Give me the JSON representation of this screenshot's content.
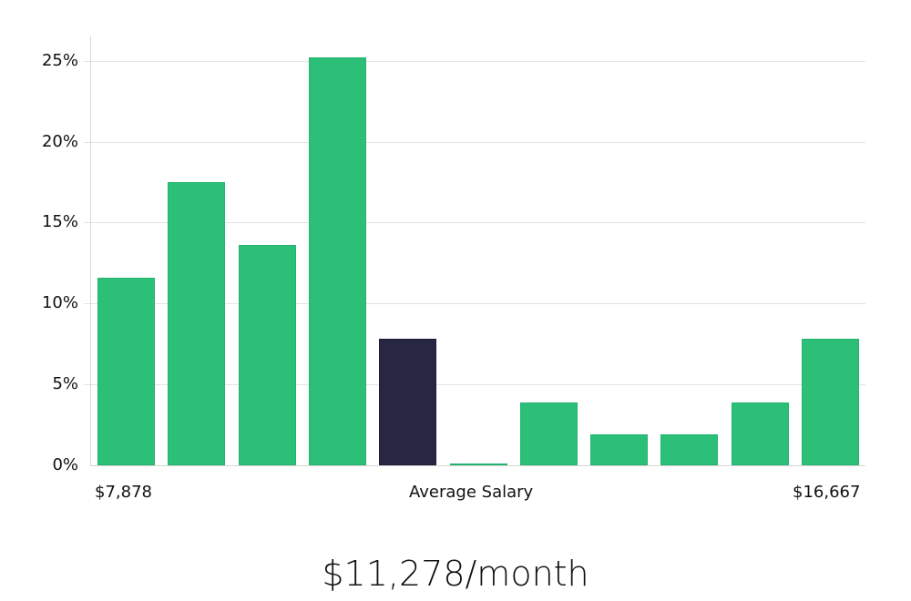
{
  "chart_data": {
    "type": "bar",
    "title": "",
    "xlabel": "Average Salary",
    "ylabel": "",
    "ylim": [
      0,
      26.5
    ],
    "yticks": [
      "0%",
      "5%",
      "10%",
      "15%",
      "20%",
      "25%"
    ],
    "x_range_labels": {
      "min": "$7,878",
      "center": "Average Salary",
      "max": "$16,667"
    },
    "categories": [
      "bin1",
      "bin2",
      "bin3",
      "bin4",
      "bin5",
      "bin6",
      "bin7",
      "bin8",
      "bin9",
      "bin10",
      "bin11"
    ],
    "values": [
      11.6,
      17.5,
      13.6,
      25.2,
      7.8,
      0.1,
      3.9,
      1.9,
      1.9,
      3.9,
      7.8
    ],
    "highlight_index": 4,
    "colors": {
      "bar": "#2cbf78",
      "highlight": "#272643",
      "grid": "#e3e3e3"
    },
    "grid": true
  },
  "axis": {
    "y_labels": [
      "25%",
      "20%",
      "15%",
      "10%",
      "5%",
      "0%"
    ],
    "x_min_label": "$7,878",
    "x_center_label": "Average Salary",
    "x_max_label": "$16,667"
  },
  "summary": {
    "average_salary": "$11,278/month"
  }
}
